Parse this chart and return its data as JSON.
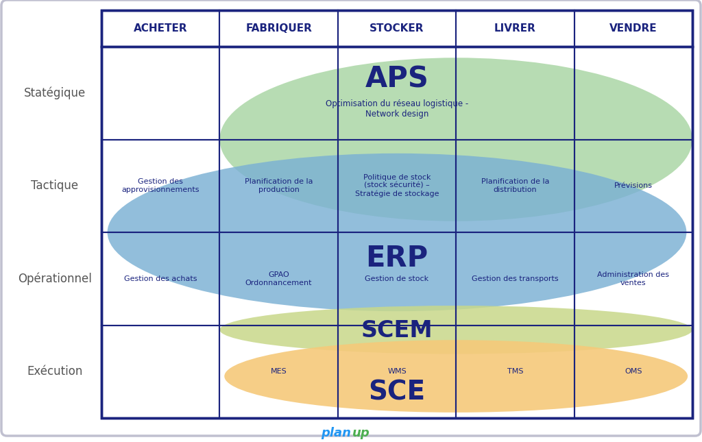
{
  "columns": [
    "ACHETER",
    "FABRIQUER",
    "STOCKER",
    "LIVRER",
    "VENDRE"
  ],
  "rows": [
    "Statégique",
    "Tactique",
    "Opérationnel",
    "Exécution"
  ],
  "grid_color": "#1a237e",
  "row_label_color": "#555555",
  "col_header_color": "#1a237e",
  "ellipse_aps_color": "#a8d5a2",
  "ellipse_aps_alpha": 0.82,
  "ellipse_erp_color": "#7ab0d4",
  "ellipse_erp_alpha": 0.82,
  "ellipse_scem_color": "#c8d88a",
  "ellipse_scem_alpha": 0.85,
  "ellipse_sce_color": "#f5c97a",
  "ellipse_sce_alpha": 0.9,
  "planup_color_plan": "#2196F3",
  "planup_color_up": "#4CAF50",
  "cell_texts": {
    "1_0": "Gestion des\napprovisionnements",
    "1_1": "Planification de la\nproduction",
    "1_2": "Politique de stock\n(stock sécurité) –\nStratégie de stockage",
    "1_3": "Planification de la\ndistribution",
    "1_4": "Prévisions",
    "2_0": "Gestion des achats",
    "2_1": "GPAO\nOrdonnancement",
    "2_2": "Gestion de stock",
    "2_3": "Gestion des transports",
    "2_4": "Administration des\nventes",
    "3_1": "MES",
    "3_2": "WMS",
    "3_3": "TMS",
    "3_4": "OMS"
  },
  "aps_subtitle": "Optimisation du réseau logistique -\nNetwork design"
}
